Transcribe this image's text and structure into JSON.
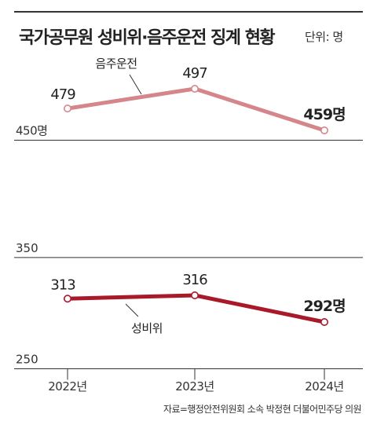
{
  "title": "국가공무원 성비위·음주운전 징계 현황",
  "unit": "단위: 명",
  "source": "자료=행정안전위원회 소속 박정현 더불어민주당 의원",
  "chart_data": {
    "type": "line",
    "title": "국가공무원 성비위·음주운전 징계 현황",
    "x": [
      "2022년",
      "2023년",
      "2024년"
    ],
    "series": [
      {
        "name": "음주운전",
        "values": [
          479,
          497,
          459
        ],
        "color": "#d4868b",
        "point_labels": [
          "479",
          "497",
          "459명"
        ]
      },
      {
        "name": "성비위",
        "values": [
          313,
          316,
          292
        ],
        "color": "#a8192a",
        "point_labels": [
          "313",
          "316",
          "292명"
        ]
      }
    ],
    "panels": [
      {
        "ticks": [
          {
            "value": 450,
            "label": "450명"
          }
        ]
      },
      {
        "ticks": [
          {
            "value": 350,
            "label": "350"
          },
          {
            "value": 250,
            "label": "250"
          }
        ]
      }
    ],
    "legend": "inline labels on lines",
    "grid": true
  }
}
